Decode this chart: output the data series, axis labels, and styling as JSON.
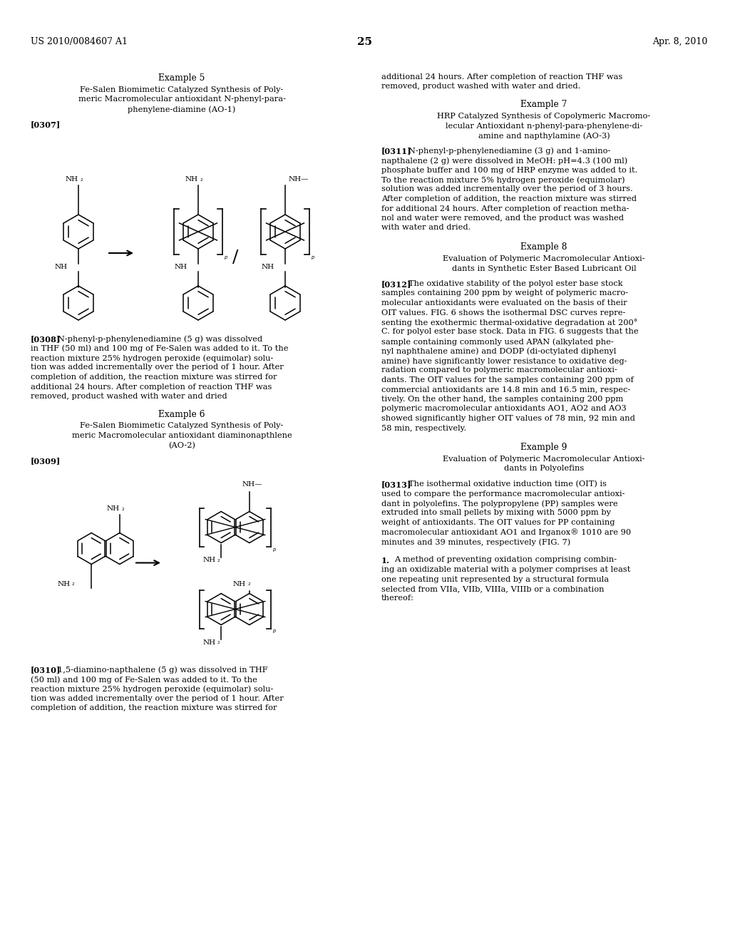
{
  "background_color": "#ffffff",
  "page_number": "25",
  "header_left": "US 2010/0084607 A1",
  "header_right": "Apr. 8, 2010",
  "left_column": {
    "example5_title": "Example 5",
    "example5_subtitle_lines": [
      "Fe-Salen Biomimetic Catalyzed Synthesis of Poly-",
      "meric Macromolecular antioxidant N-phenyl-para-",
      "phenylene-diamine (AO-1)"
    ],
    "para_0307": "[0307]",
    "para_0308_label": "[0308]",
    "para_0308_lines": [
      "N-phenyl-p-phenylenediamine (5 g) was dissolved",
      "in THF (50 ml) and 100 mg of Fe-Salen was added to it. To the",
      "reaction mixture 25% hydrogen peroxide (equimolar) solu-",
      "tion was added incrementally over the period of 1 hour. After",
      "completion of addition, the reaction mixture was stirred for",
      "additional 24 hours. After completion of reaction THF was",
      "removed, product washed with water and dried"
    ],
    "example6_title": "Example 6",
    "example6_subtitle_lines": [
      "Fe-Salen Biomimetic Catalyzed Synthesis of Poly-",
      "meric Macromolecular antioxidant diaminonapthlene",
      "(AO-2)"
    ],
    "para_0309": "[0309]",
    "para_0310_label": "[0310]",
    "para_0310_lines": [
      "1,5-diamino-napthalene (5 g) was dissolved in THF",
      "(50 ml) and 100 mg of Fe-Salen was added to it. To the",
      "reaction mixture 25% hydrogen peroxide (equimolar) solu-",
      "tion was added incrementally over the period of 1 hour. After",
      "completion of addition, the reaction mixture was stirred for"
    ]
  },
  "right_column": {
    "cont_lines": [
      "additional 24 hours. After completion of reaction THF was",
      "removed, product washed with water and dried."
    ],
    "example7_title": "Example 7",
    "example7_subtitle_lines": [
      "HRP Catalyzed Synthesis of Copolymeric Macromo-",
      "lecular Antioxidant n-phenyl-para-phenylene-di-",
      "amine and napthylamine (AO-3)"
    ],
    "para_0311_label": "[0311]",
    "para_0311_lines": [
      "N-phenyl-p-phenylenediamine (3 g) and 1-amino-",
      "napthalene (2 g) were dissolved in MeOH: pH=4.3 (100 ml)",
      "phosphate buffer and 100 mg of HRP enzyme was added to it.",
      "To the reaction mixture 5% hydrogen peroxide (equimolar)",
      "solution was added incrementally over the period of 3 hours.",
      "After completion of addition, the reaction mixture was stirred",
      "for additional 24 hours. After completion of reaction metha-",
      "nol and water were removed, and the product was washed",
      "with water and dried."
    ],
    "example8_title": "Example 8",
    "example8_subtitle_lines": [
      "Evaluation of Polymeric Macromolecular Antioxi-",
      "dants in Synthetic Ester Based Lubricant Oil"
    ],
    "para_0312_label": "[0312]",
    "para_0312_lines": [
      "The oxidative stability of the polyol ester base stock",
      "samples containing 200 ppm by weight of polymeric macro-",
      "molecular antioxidants were evaluated on the basis of their",
      "OIT values. FIG. 6 shows the isothermal DSC curves repre-",
      "senting the exothermic thermal-oxidative degradation at 200°",
      "C. for polyol ester base stock. Data in FIG. 6 suggests that the",
      "sample containing commonly used APAN (alkylated phe-",
      "nyl naphthalene amine) and DODP (di-octylated diphenyl",
      "amine) have significantly lower resistance to oxidative deg-",
      "radation compared to polymeric macromolecular antioxi-",
      "dants. The OIT values for the samples containing 200 ppm of",
      "commercial antioxidants are 14.8 min and 16.5 min, respec-",
      "tively. On the other hand, the samples containing 200 ppm",
      "polymeric macromolecular antioxidants AO1, AO2 and AO3",
      "showed significantly higher OIT values of 78 min, 92 min and",
      "58 min, respectively."
    ],
    "example9_title": "Example 9",
    "example9_subtitle_lines": [
      "Evaluation of Polymeric Macromolecular Antioxi-",
      "dants in Polyolefins"
    ],
    "para_0313_label": "[0313]",
    "para_0313_lines": [
      "The isothermal oxidative induction time (OIT) is",
      "used to compare the performance macromolecular antioxi-",
      "dant in polyolefins. The polypropylene (PP) samples were",
      "extruded into small pellets by mixing with 5000 ppm by",
      "weight of antioxidants. The OIT values for PP containing",
      "macromolecular antioxidant AO1 and Irganox® 1010 are 90",
      "minutes and 39 minutes, respectively (FIG. 7)"
    ],
    "claim1_label": "1.",
    "claim1_lines": [
      "A method of preventing oxidation comprising combin-",
      "ing an oxidizable material with a polymer comprises at least",
      "one repeating unit represented by a structural formula",
      "selected from VIIa, VIIb, VIIIa, VIIIb or a combination",
      "thereof:"
    ]
  }
}
